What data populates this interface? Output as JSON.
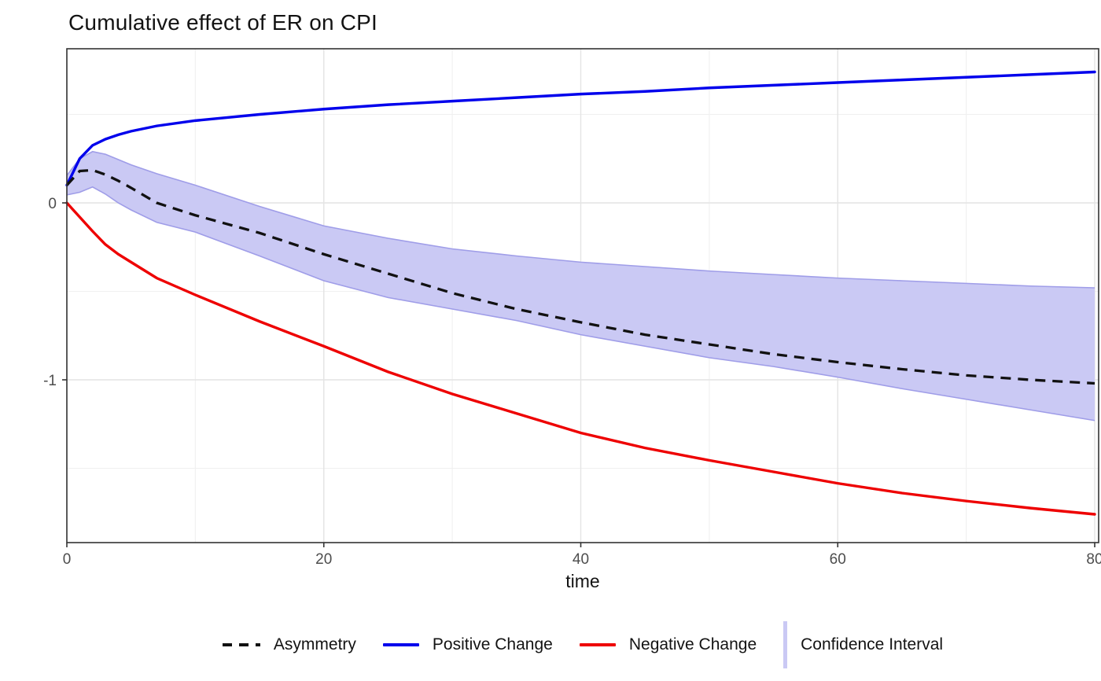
{
  "title": "Cumulative effect of ER on CPI",
  "axes": {
    "x": {
      "label": "time",
      "tick_labels": [
        "0",
        "20",
        "40",
        "60",
        "80"
      ],
      "ticks": [
        0,
        20,
        40,
        60,
        80
      ],
      "minor": [
        10,
        30,
        50,
        70
      ],
      "range": [
        0,
        80
      ]
    },
    "y": {
      "label": "",
      "tick_labels": [
        "0",
        "-1"
      ],
      "ticks": [
        0,
        -1
      ],
      "minor": [
        0.5,
        -0.5,
        -1.5
      ],
      "range": [
        -1.92,
        0.87
      ]
    }
  },
  "legend": {
    "items": [
      {
        "label": "Asymmetry",
        "key": "dashed-black-line"
      },
      {
        "label": "Positive Change",
        "key": "solid-blue-line"
      },
      {
        "label": "Negative Change",
        "key": "solid-red-line"
      },
      {
        "label": "Confidence Interval",
        "key": "lavender-band-swatch"
      }
    ],
    "position": "bottom"
  },
  "colors": {
    "positive": "#0000ec",
    "negative": "#ee0000",
    "asymmetry": "#111111",
    "band_fill": "#cac9f4",
    "band_edge": "#9f9de8",
    "grid_major": "#e4e4e4",
    "grid_minor": "#f0f0f0",
    "panel_border": "#333333",
    "tick_text": "#4d4d4d",
    "text": "#131313"
  },
  "chart_data": {
    "type": "line",
    "title": "Cumulative effect of ER on CPI",
    "xlabel": "time",
    "ylabel": "",
    "xlim": [
      0,
      80
    ],
    "ylim": [
      -1.92,
      0.87
    ],
    "x_ticks": [
      0,
      20,
      40,
      60,
      80
    ],
    "y_ticks": [
      0,
      -1
    ],
    "grid": "major and minor, light gray on white, panel border on all sides",
    "legend_position": "bottom-center",
    "x": [
      0,
      1,
      2,
      3,
      4,
      5,
      7,
      10,
      15,
      20,
      25,
      30,
      35,
      40,
      45,
      50,
      55,
      60,
      65,
      70,
      75,
      80
    ],
    "series": [
      {
        "name": "Asymmetry",
        "style": "dashed",
        "color": "#111111",
        "values": [
          0.1,
          0.18,
          0.185,
          0.16,
          0.125,
          0.085,
          0.0,
          -0.07,
          -0.17,
          -0.29,
          -0.4,
          -0.51,
          -0.6,
          -0.675,
          -0.745,
          -0.8,
          -0.855,
          -0.9,
          -0.94,
          -0.975,
          -1.0,
          -1.02
        ]
      },
      {
        "name": "Positive Change",
        "style": "solid",
        "color": "#0000ec",
        "values": [
          0.1,
          0.25,
          0.325,
          0.36,
          0.385,
          0.405,
          0.435,
          0.465,
          0.5,
          0.53,
          0.555,
          0.575,
          0.595,
          0.615,
          0.63,
          0.65,
          0.665,
          0.68,
          0.695,
          0.71,
          0.725,
          0.74
        ]
      },
      {
        "name": "Negative Change",
        "style": "solid",
        "color": "#ee0000",
        "values": [
          0.0,
          -0.08,
          -0.16,
          -0.235,
          -0.29,
          -0.335,
          -0.425,
          -0.52,
          -0.67,
          -0.81,
          -0.955,
          -1.08,
          -1.19,
          -1.3,
          -1.385,
          -1.455,
          -1.52,
          -1.585,
          -1.64,
          -1.685,
          -1.725,
          -1.76
        ]
      }
    ],
    "band": {
      "name": "Confidence Interval",
      "upper": [
        0.155,
        0.25,
        0.29,
        0.275,
        0.245,
        0.215,
        0.165,
        0.1,
        -0.02,
        -0.13,
        -0.2,
        -0.26,
        -0.3,
        -0.335,
        -0.36,
        -0.385,
        -0.405,
        -0.425,
        -0.44,
        -0.455,
        -0.47,
        -0.48
      ],
      "lower": [
        0.045,
        0.06,
        0.09,
        0.05,
        0.0,
        -0.04,
        -0.11,
        -0.165,
        -0.3,
        -0.44,
        -0.535,
        -0.6,
        -0.665,
        -0.745,
        -0.81,
        -0.875,
        -0.925,
        -0.985,
        -1.05,
        -1.11,
        -1.17,
        -1.23
      ]
    }
  }
}
